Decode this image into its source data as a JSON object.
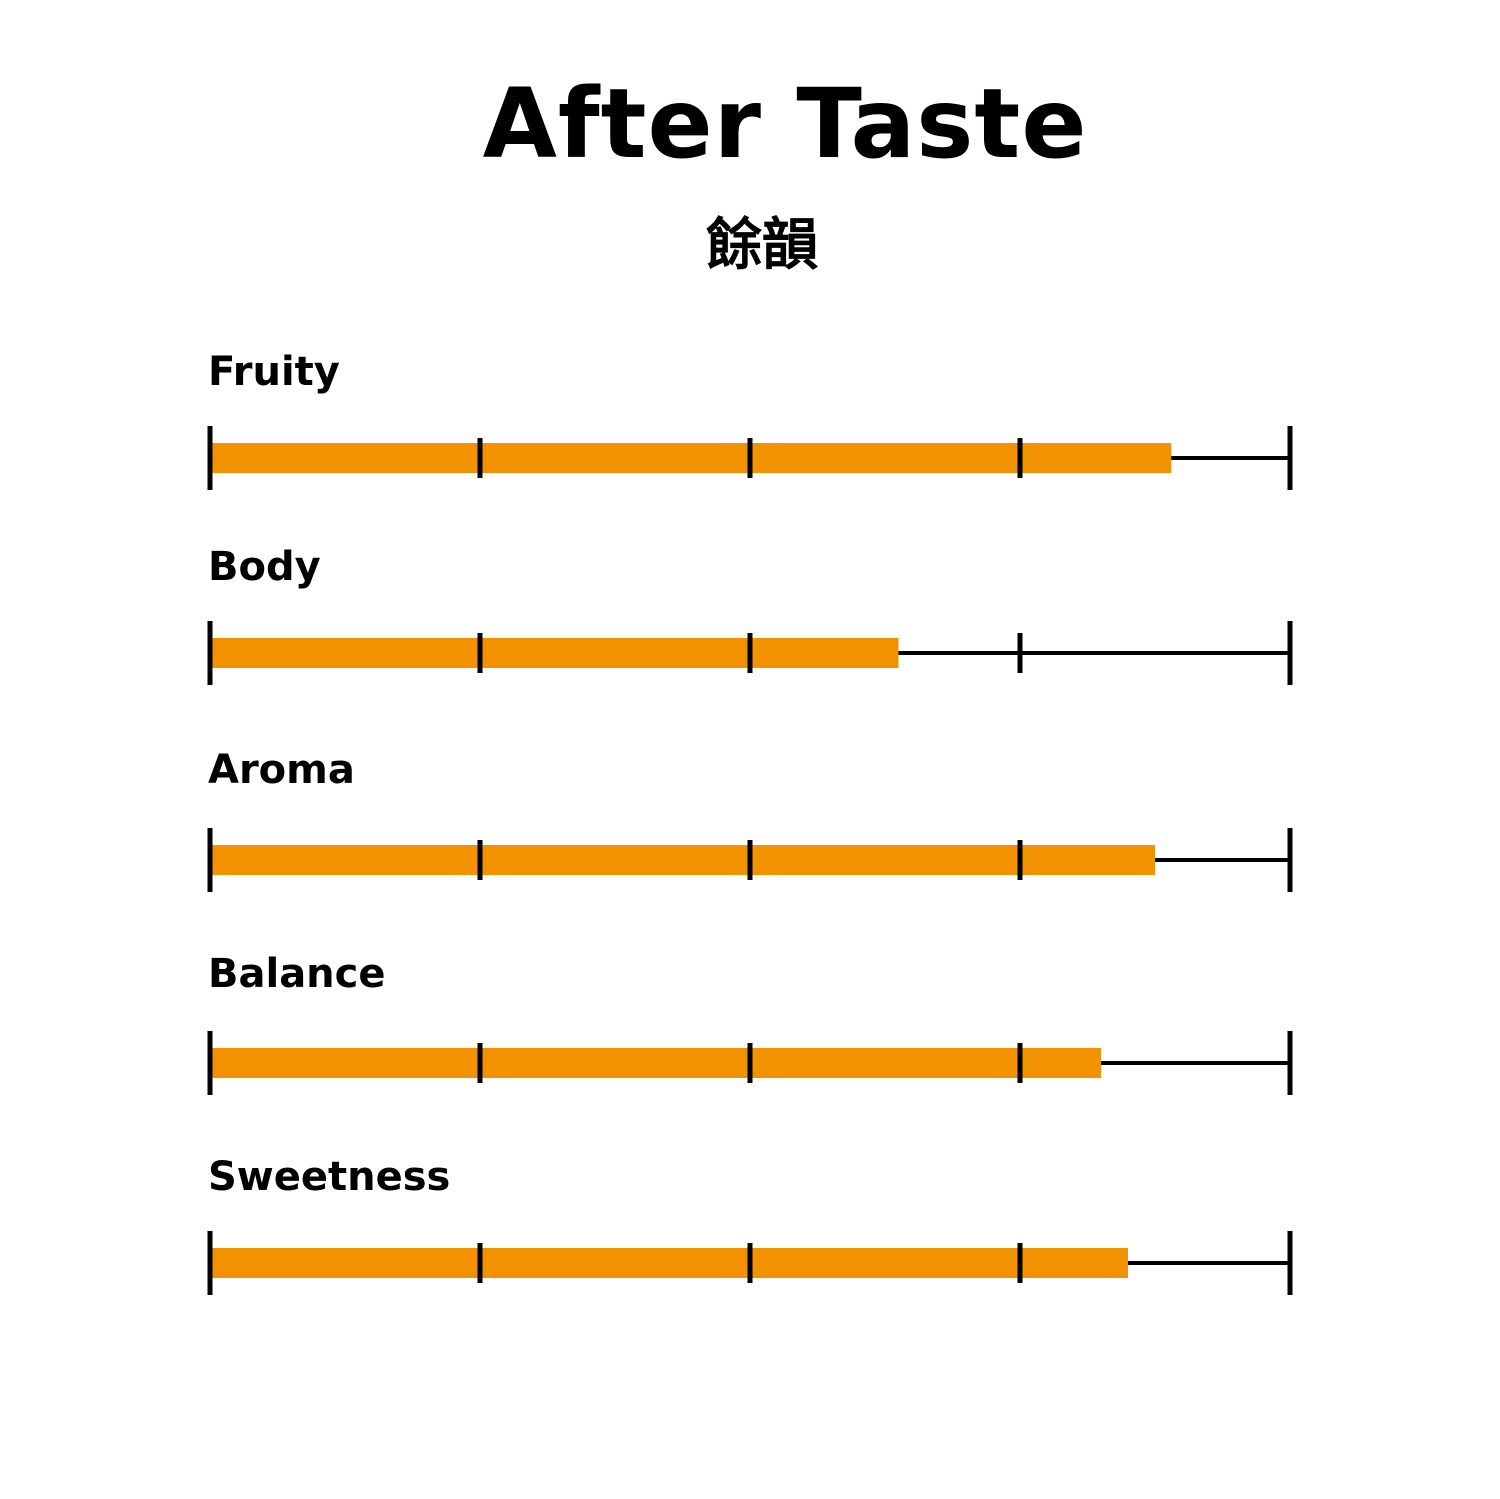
{
  "chart_data": {
    "type": "bar",
    "orientation": "horizontal",
    "title": "After Taste",
    "subtitle": "餘韻",
    "categories": [
      "Fruity",
      "Body",
      "Aroma",
      "Balance",
      "Sweetness"
    ],
    "values": [
      3.56,
      2.55,
      3.5,
      3.3,
      3.4
    ],
    "xlim": [
      0,
      4
    ],
    "ticks": [
      0,
      1,
      2,
      3,
      4
    ],
    "tick_labels_shown": false,
    "grid": false,
    "legend": "none",
    "bar_color": "#F39200",
    "axis_color": "#000000"
  }
}
